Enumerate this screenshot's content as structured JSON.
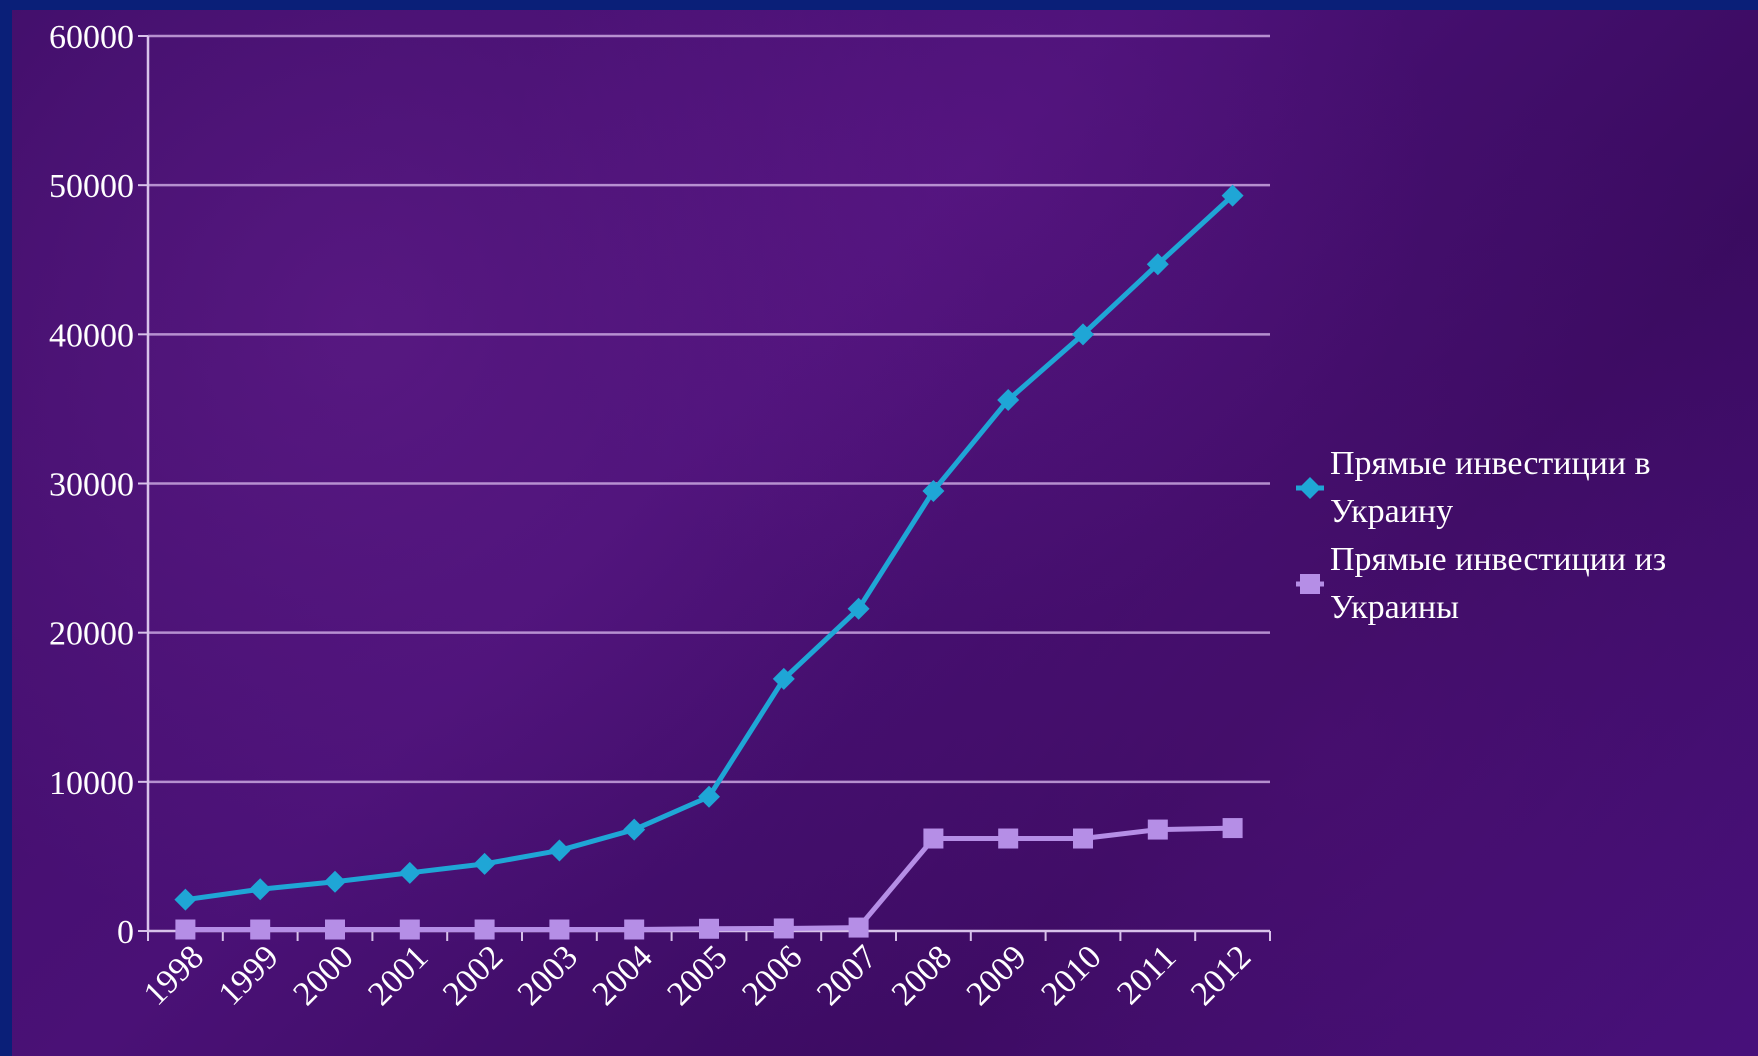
{
  "chart_data": {
    "type": "line",
    "categories": [
      "1998",
      "1999",
      "2000",
      "2001",
      "2002",
      "2003",
      "2004",
      "2005",
      "2006",
      "2007",
      "2008",
      "2009",
      "2010",
      "2011",
      "2012"
    ],
    "series": [
      {
        "name": "Прямые инвестиции в Украину",
        "name_lines": [
          "Прямые инвестиции в",
          "Украину"
        ],
        "color": "#1fa6d6",
        "marker": "diamond",
        "values": [
          2100,
          2800,
          3300,
          3900,
          4500,
          5400,
          6800,
          9000,
          16900,
          21600,
          29500,
          35600,
          40000,
          44700,
          49300
        ]
      },
      {
        "name": "Прямые инвестиции из Украины",
        "name_lines": [
          "Прямые инвестиции из",
          "Украины"
        ],
        "color": "#b58ee6",
        "marker": "square",
        "values": [
          100,
          100,
          100,
          100,
          100,
          100,
          100,
          150,
          170,
          230,
          6200,
          6200,
          6200,
          6800,
          6900
        ]
      }
    ],
    "yticks": [
      "0",
      "10000",
      "20000",
      "30000",
      "40000",
      "50000",
      "60000"
    ],
    "ylim": [
      0,
      60000
    ],
    "grid": true,
    "legend_position": "right",
    "title": "",
    "xlabel": "",
    "ylabel": ""
  }
}
